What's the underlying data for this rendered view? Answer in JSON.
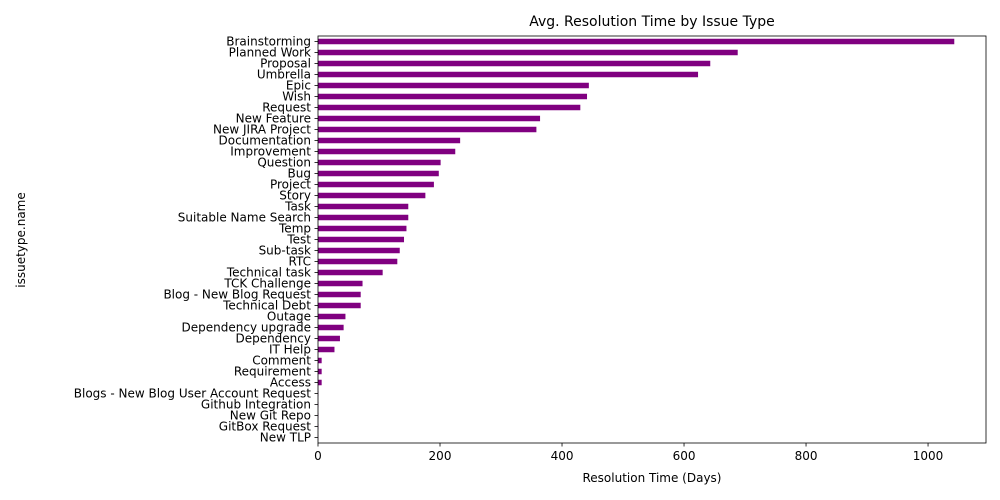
{
  "chart_data": {
    "type": "bar",
    "orientation": "horizontal",
    "title": "Avg. Resolution Time by Issue Type",
    "xlabel": "Resolution Time (Days)",
    "ylabel": "issuetype.name",
    "xlim": [
      0,
      1095
    ],
    "xticks": [
      0,
      200,
      400,
      600,
      800,
      1000
    ],
    "grid": false,
    "color": "#800080",
    "categories": [
      "Brainstorming",
      "Planned Work",
      "Proposal",
      "Umbrella",
      "Epic",
      "Wish",
      "Request",
      "New Feature",
      "New JIRA Project",
      "Documentation",
      "Improvement",
      "Question",
      "Bug",
      "Project",
      "Story",
      "Task",
      "Suitable Name Search",
      "Temp",
      "Test",
      "Sub-task",
      "RTC",
      "Technical task",
      "TCK Challenge",
      "Blog - New Blog Request",
      "Technical Debt",
      "Outage",
      "Dependency upgrade",
      "Dependency",
      "IT Help",
      "Comment",
      "Requirement",
      "Access",
      "Blogs - New Blog User Account Request",
      "Github Integration",
      "New Git Repo",
      "GitBox Request",
      "New TLP"
    ],
    "values": [
      1043,
      688,
      643,
      623,
      444,
      441,
      430,
      364,
      358,
      233,
      225,
      201,
      198,
      190,
      176,
      148,
      148,
      145,
      141,
      134,
      130,
      106,
      73,
      70,
      70,
      45,
      42,
      36,
      27,
      6,
      6,
      6,
      0.5,
      0.5,
      0.5,
      0.5,
      0.3
    ]
  }
}
